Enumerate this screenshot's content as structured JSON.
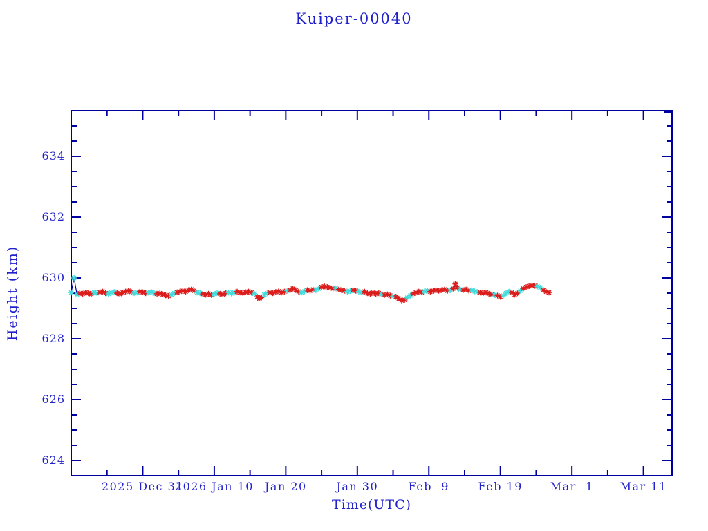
{
  "figure": {
    "background": "#ffffff",
    "text_color": "#2222cc",
    "axis_color": "#0000a0"
  },
  "chart_data": {
    "type": "line",
    "title": "Kuiper-00040",
    "xlabel": "Time(UTC)",
    "ylabel": "Height (km)",
    "grid": false,
    "legend": "none",
    "x_axis": {
      "start_date": "2025 Dec 21",
      "unit": "days since 2025 Dec 21",
      "lim": [
        0,
        84
      ]
    },
    "ylim": [
      623.5,
      635.5
    ],
    "y_major_step": 2,
    "y_minor_step": 0.5,
    "x_major_ticks": [
      {
        "day": 10,
        "label": "2025 Dec 31"
      },
      {
        "day": 20,
        "label": "2026 Jan 10"
      },
      {
        "day": 30,
        "label": "Jan 20"
      },
      {
        "day": 40,
        "label": "Jan 30"
      },
      {
        "day": 50,
        "label": "Feb  9"
      },
      {
        "day": 60,
        "label": "Feb 19"
      },
      {
        "day": 70,
        "label": "Mar  1"
      },
      {
        "day": 80,
        "label": "Mar 11"
      }
    ],
    "x_minor_days": [
      5,
      15,
      25,
      35,
      45,
      55,
      65,
      75
    ],
    "series": [
      {
        "name": "height-track-line",
        "type": "line",
        "color": "#0000a0"
      },
      {
        "name": "red-observations",
        "type": "scatter",
        "marker": "asterisk",
        "color": "#dd1c1c"
      },
      {
        "name": "cyan-observations",
        "type": "scatter",
        "marker": "asterisk",
        "color": "#44dcdc"
      }
    ],
    "points_format": [
      "day",
      "height_km",
      "marker_color r=red c=cyan"
    ],
    "points": [
      [
        0.0,
        629.52,
        "c"
      ],
      [
        0.4,
        630.0,
        "c"
      ],
      [
        0.8,
        629.46,
        "c"
      ],
      [
        1.2,
        629.5,
        "r"
      ],
      [
        1.6,
        629.48,
        "r"
      ],
      [
        2.0,
        629.52,
        "r"
      ],
      [
        2.4,
        629.5,
        "r"
      ],
      [
        2.8,
        629.47,
        "r"
      ],
      [
        3.2,
        629.52,
        "c"
      ],
      [
        3.6,
        629.5,
        "c"
      ],
      [
        4.0,
        629.53,
        "r"
      ],
      [
        4.4,
        629.55,
        "r"
      ],
      [
        4.8,
        629.5,
        "r"
      ],
      [
        5.2,
        629.48,
        "c"
      ],
      [
        5.6,
        629.52,
        "c"
      ],
      [
        6.0,
        629.54,
        "c"
      ],
      [
        6.4,
        629.5,
        "r"
      ],
      [
        6.8,
        629.47,
        "r"
      ],
      [
        7.2,
        629.52,
        "r"
      ],
      [
        7.6,
        629.55,
        "r"
      ],
      [
        8.0,
        629.58,
        "r"
      ],
      [
        8.4,
        629.54,
        "r"
      ],
      [
        8.8,
        629.5,
        "c"
      ],
      [
        9.2,
        629.52,
        "c"
      ],
      [
        9.6,
        629.55,
        "r"
      ],
      [
        10.0,
        629.53,
        "r"
      ],
      [
        10.4,
        629.5,
        "r"
      ],
      [
        10.8,
        629.52,
        "c"
      ],
      [
        11.2,
        629.54,
        "c"
      ],
      [
        11.6,
        629.5,
        "c"
      ],
      [
        12.0,
        629.48,
        "r"
      ],
      [
        12.4,
        629.5,
        "r"
      ],
      [
        12.8,
        629.46,
        "r"
      ],
      [
        13.2,
        629.43,
        "r"
      ],
      [
        13.6,
        629.41,
        "r"
      ],
      [
        14.0,
        629.45,
        "c"
      ],
      [
        14.4,
        629.5,
        "c"
      ],
      [
        14.8,
        629.53,
        "r"
      ],
      [
        15.2,
        629.55,
        "r"
      ],
      [
        15.6,
        629.58,
        "r"
      ],
      [
        16.0,
        629.55,
        "r"
      ],
      [
        16.4,
        629.6,
        "r"
      ],
      [
        16.8,
        629.62,
        "r"
      ],
      [
        17.2,
        629.58,
        "r"
      ],
      [
        17.6,
        629.52,
        "c"
      ],
      [
        18.0,
        629.5,
        "c"
      ],
      [
        18.4,
        629.47,
        "r"
      ],
      [
        18.8,
        629.45,
        "r"
      ],
      [
        19.2,
        629.48,
        "r"
      ],
      [
        19.6,
        629.44,
        "r"
      ],
      [
        20.0,
        629.47,
        "c"
      ],
      [
        20.4,
        629.5,
        "c"
      ],
      [
        20.8,
        629.48,
        "r"
      ],
      [
        21.2,
        629.46,
        "r"
      ],
      [
        21.6,
        629.5,
        "r"
      ],
      [
        22.0,
        629.52,
        "c"
      ],
      [
        22.4,
        629.49,
        "c"
      ],
      [
        22.8,
        629.52,
        "c"
      ],
      [
        23.2,
        629.55,
        "r"
      ],
      [
        23.6,
        629.52,
        "r"
      ],
      [
        24.0,
        629.5,
        "r"
      ],
      [
        24.4,
        629.53,
        "r"
      ],
      [
        24.8,
        629.55,
        "r"
      ],
      [
        25.2,
        629.52,
        "r"
      ],
      [
        25.6,
        629.48,
        "c"
      ],
      [
        26.0,
        629.38,
        "r"
      ],
      [
        26.3,
        629.32,
        "r"
      ],
      [
        26.6,
        629.36,
        "r"
      ],
      [
        27.0,
        629.45,
        "c"
      ],
      [
        27.4,
        629.5,
        "c"
      ],
      [
        27.8,
        629.52,
        "r"
      ],
      [
        28.2,
        629.5,
        "r"
      ],
      [
        28.6,
        629.54,
        "r"
      ],
      [
        29.0,
        629.56,
        "r"
      ],
      [
        29.4,
        629.52,
        "r"
      ],
      [
        29.8,
        629.55,
        "r"
      ],
      [
        30.2,
        629.58,
        "c"
      ],
      [
        30.6,
        629.6,
        "r"
      ],
      [
        31.0,
        629.65,
        "r"
      ],
      [
        31.4,
        629.6,
        "r"
      ],
      [
        31.8,
        629.55,
        "r"
      ],
      [
        32.2,
        629.52,
        "c"
      ],
      [
        32.6,
        629.56,
        "c"
      ],
      [
        33.0,
        629.6,
        "r"
      ],
      [
        33.4,
        629.58,
        "r"
      ],
      [
        33.8,
        629.62,
        "r"
      ],
      [
        34.2,
        629.6,
        "c"
      ],
      [
        34.6,
        629.65,
        "c"
      ],
      [
        35.0,
        629.7,
        "r"
      ],
      [
        35.4,
        629.72,
        "r"
      ],
      [
        35.8,
        629.7,
        "r"
      ],
      [
        36.2,
        629.68,
        "r"
      ],
      [
        36.6,
        629.65,
        "r"
      ],
      [
        37.0,
        629.66,
        "c"
      ],
      [
        37.4,
        629.62,
        "r"
      ],
      [
        37.8,
        629.6,
        "r"
      ],
      [
        38.2,
        629.58,
        "r"
      ],
      [
        38.6,
        629.55,
        "c"
      ],
      [
        39.0,
        629.57,
        "c"
      ],
      [
        39.4,
        629.6,
        "r"
      ],
      [
        39.8,
        629.58,
        "r"
      ],
      [
        40.2,
        629.55,
        "c"
      ],
      [
        40.6,
        629.52,
        "c"
      ],
      [
        41.0,
        629.55,
        "r"
      ],
      [
        41.4,
        629.5,
        "r"
      ],
      [
        41.8,
        629.48,
        "r"
      ],
      [
        42.2,
        629.52,
        "r"
      ],
      [
        42.6,
        629.48,
        "r"
      ],
      [
        43.0,
        629.5,
        "r"
      ],
      [
        43.4,
        629.46,
        "c"
      ],
      [
        43.8,
        629.44,
        "r"
      ],
      [
        44.2,
        629.46,
        "r"
      ],
      [
        44.6,
        629.42,
        "r"
      ],
      [
        45.0,
        629.4,
        "c"
      ],
      [
        45.4,
        629.38,
        "r"
      ],
      [
        45.8,
        629.32,
        "r"
      ],
      [
        46.2,
        629.26,
        "r"
      ],
      [
        46.6,
        629.28,
        "r"
      ],
      [
        47.0,
        629.35,
        "c"
      ],
      [
        47.4,
        629.42,
        "c"
      ],
      [
        47.8,
        629.48,
        "r"
      ],
      [
        48.2,
        629.52,
        "r"
      ],
      [
        48.6,
        629.55,
        "r"
      ],
      [
        49.0,
        629.53,
        "r"
      ],
      [
        49.4,
        629.56,
        "c"
      ],
      [
        49.8,
        629.58,
        "c"
      ],
      [
        50.2,
        629.55,
        "r"
      ],
      [
        50.6,
        629.58,
        "r"
      ],
      [
        51.0,
        629.6,
        "r"
      ],
      [
        51.4,
        629.58,
        "r"
      ],
      [
        51.8,
        629.6,
        "r"
      ],
      [
        52.2,
        629.62,
        "r"
      ],
      [
        52.6,
        629.58,
        "r"
      ],
      [
        53.0,
        629.6,
        "c"
      ],
      [
        53.4,
        629.65,
        "r"
      ],
      [
        53.7,
        629.8,
        "r"
      ],
      [
        54.0,
        629.68,
        "r"
      ],
      [
        54.4,
        629.62,
        "c"
      ],
      [
        54.8,
        629.6,
        "r"
      ],
      [
        55.2,
        629.62,
        "r"
      ],
      [
        55.6,
        629.58,
        "r"
      ],
      [
        56.0,
        629.6,
        "c"
      ],
      [
        56.4,
        629.56,
        "c"
      ],
      [
        56.8,
        629.54,
        "c"
      ],
      [
        57.2,
        629.52,
        "r"
      ],
      [
        57.6,
        629.5,
        "r"
      ],
      [
        58.0,
        629.52,
        "r"
      ],
      [
        58.4,
        629.48,
        "r"
      ],
      [
        58.8,
        629.46,
        "r"
      ],
      [
        59.2,
        629.44,
        "c"
      ],
      [
        59.6,
        629.42,
        "r"
      ],
      [
        60.0,
        629.38,
        "r"
      ],
      [
        60.4,
        629.42,
        "c"
      ],
      [
        60.8,
        629.5,
        "c"
      ],
      [
        61.2,
        629.55,
        "c"
      ],
      [
        61.6,
        629.52,
        "r"
      ],
      [
        62.0,
        629.45,
        "r"
      ],
      [
        62.4,
        629.5,
        "r"
      ],
      [
        62.8,
        629.58,
        "c"
      ],
      [
        63.2,
        629.65,
        "r"
      ],
      [
        63.6,
        629.7,
        "r"
      ],
      [
        64.0,
        629.73,
        "r"
      ],
      [
        64.4,
        629.75,
        "r"
      ],
      [
        64.8,
        629.74,
        "r"
      ],
      [
        65.2,
        629.72,
        "c"
      ],
      [
        65.6,
        629.68,
        "c"
      ],
      [
        66.0,
        629.6,
        "r"
      ],
      [
        66.4,
        629.55,
        "r"
      ],
      [
        66.8,
        629.52,
        "r"
      ]
    ]
  }
}
